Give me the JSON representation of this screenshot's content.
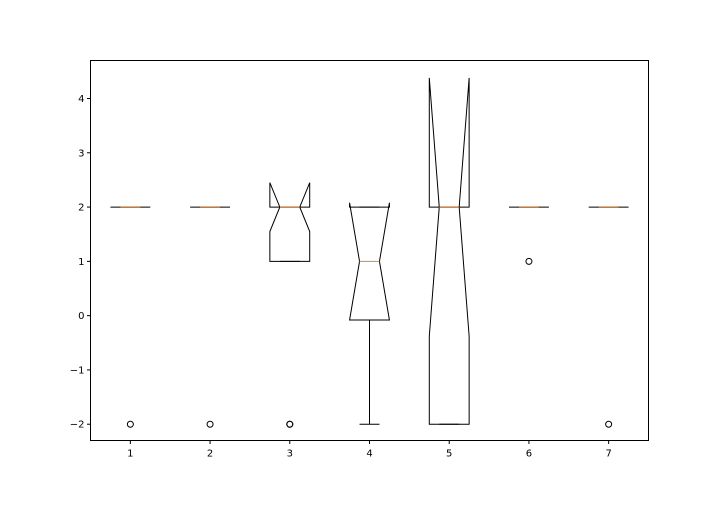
{
  "chart_data": {
    "type": "boxplot",
    "notched": true,
    "grid": false,
    "title": "",
    "xlabel": "",
    "ylabel": "",
    "ylim": [
      -2.3,
      4.7
    ],
    "yticks": [
      -2,
      -1,
      0,
      1,
      2,
      3,
      4
    ],
    "ytick_labels": [
      "−2",
      "−1",
      "0",
      "1",
      "2",
      "3",
      "4"
    ],
    "categories": [
      "1",
      "2",
      "3",
      "4",
      "5",
      "6",
      "7"
    ],
    "boxes": [
      {
        "label": "1",
        "whislo": 2,
        "q1": 2,
        "med": 2,
        "q3": 2,
        "whishi": 2,
        "cilo": 2,
        "cihi": 2,
        "fliers": [
          -2
        ]
      },
      {
        "label": "2",
        "whislo": 2,
        "q1": 2,
        "med": 2,
        "q3": 2,
        "whishi": 2,
        "cilo": 2,
        "cihi": 2,
        "fliers": [
          -2
        ]
      },
      {
        "label": "3",
        "whislo": 1,
        "q1": 1,
        "med": 2,
        "q3": 2,
        "whishi": 2,
        "cilo": 1.55,
        "cihi": 2.45,
        "fliers": [
          -2,
          -2
        ]
      },
      {
        "label": "4",
        "whislo": -2,
        "q1": -0.08,
        "med": 1,
        "q3": 2,
        "whishi": 2,
        "cilo": -0.08,
        "cihi": 2.08,
        "fliers": []
      },
      {
        "label": "5",
        "whislo": -2,
        "q1": -2,
        "med": 2,
        "q3": 2,
        "whishi": 2,
        "cilo": -0.38,
        "cihi": 4.38,
        "fliers": []
      },
      {
        "label": "6",
        "whislo": 2,
        "q1": 2,
        "med": 2,
        "q3": 2,
        "whishi": 2,
        "cilo": 2,
        "cihi": 2,
        "fliers": [
          1
        ]
      },
      {
        "label": "7",
        "whislo": 2,
        "q1": 2,
        "med": 2,
        "q3": 2,
        "whishi": 2,
        "cilo": 2,
        "cihi": 2,
        "fliers": [
          -2
        ]
      }
    ],
    "colors": {
      "box": "#000000",
      "median": "#ff7f0e",
      "flier": "#000000",
      "frame": "#000000"
    }
  }
}
